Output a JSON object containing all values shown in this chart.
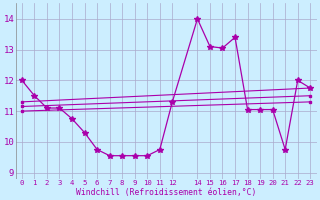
{
  "xlabel": "Windchill (Refroidissement éolien,°C)",
  "bg_color": "#cceeff",
  "line_color": "#aa00aa",
  "grid_color": "#aaaacc",
  "tick_color": "#aa00aa",
  "xlim": [
    -0.5,
    23.5
  ],
  "ylim": [
    8.8,
    14.5
  ],
  "yticks": [
    9,
    10,
    11,
    12,
    13,
    14
  ],
  "xtick_positions": [
    0,
    1,
    2,
    3,
    4,
    5,
    6,
    7,
    8,
    9,
    10,
    11,
    12,
    14,
    15,
    16,
    17,
    18,
    19,
    20,
    21,
    22,
    23
  ],
  "xtick_labels": [
    "0",
    "1",
    "2",
    "3",
    "4",
    "5",
    "6",
    "7",
    "8",
    "9",
    "10",
    "11",
    "12",
    "14",
    "15",
    "16",
    "17",
    "18",
    "19",
    "20",
    "21",
    "22",
    "23"
  ],
  "series_main": [
    [
      0,
      12.0
    ],
    [
      1,
      11.5
    ],
    [
      2,
      11.1
    ],
    [
      3,
      11.1
    ],
    [
      4,
      10.75
    ],
    [
      5,
      10.3
    ],
    [
      6,
      9.75
    ],
    [
      7,
      9.55
    ],
    [
      8,
      9.55
    ],
    [
      9,
      9.55
    ],
    [
      10,
      9.55
    ],
    [
      11,
      9.75
    ],
    [
      12,
      11.3
    ],
    [
      14,
      14.0
    ],
    [
      15,
      13.1
    ],
    [
      16,
      13.05
    ],
    [
      17,
      13.4
    ],
    [
      18,
      11.05
    ],
    [
      19,
      11.05
    ],
    [
      20,
      11.05
    ],
    [
      21,
      9.75
    ],
    [
      22,
      12.0
    ],
    [
      23,
      11.75
    ]
  ],
  "series_linear": [
    [
      [
        0,
        11.0
      ],
      [
        23,
        11.3
      ]
    ],
    [
      [
        0,
        11.15
      ],
      [
        23,
        11.5
      ]
    ],
    [
      [
        0,
        11.3
      ],
      [
        23,
        11.75
      ]
    ]
  ]
}
